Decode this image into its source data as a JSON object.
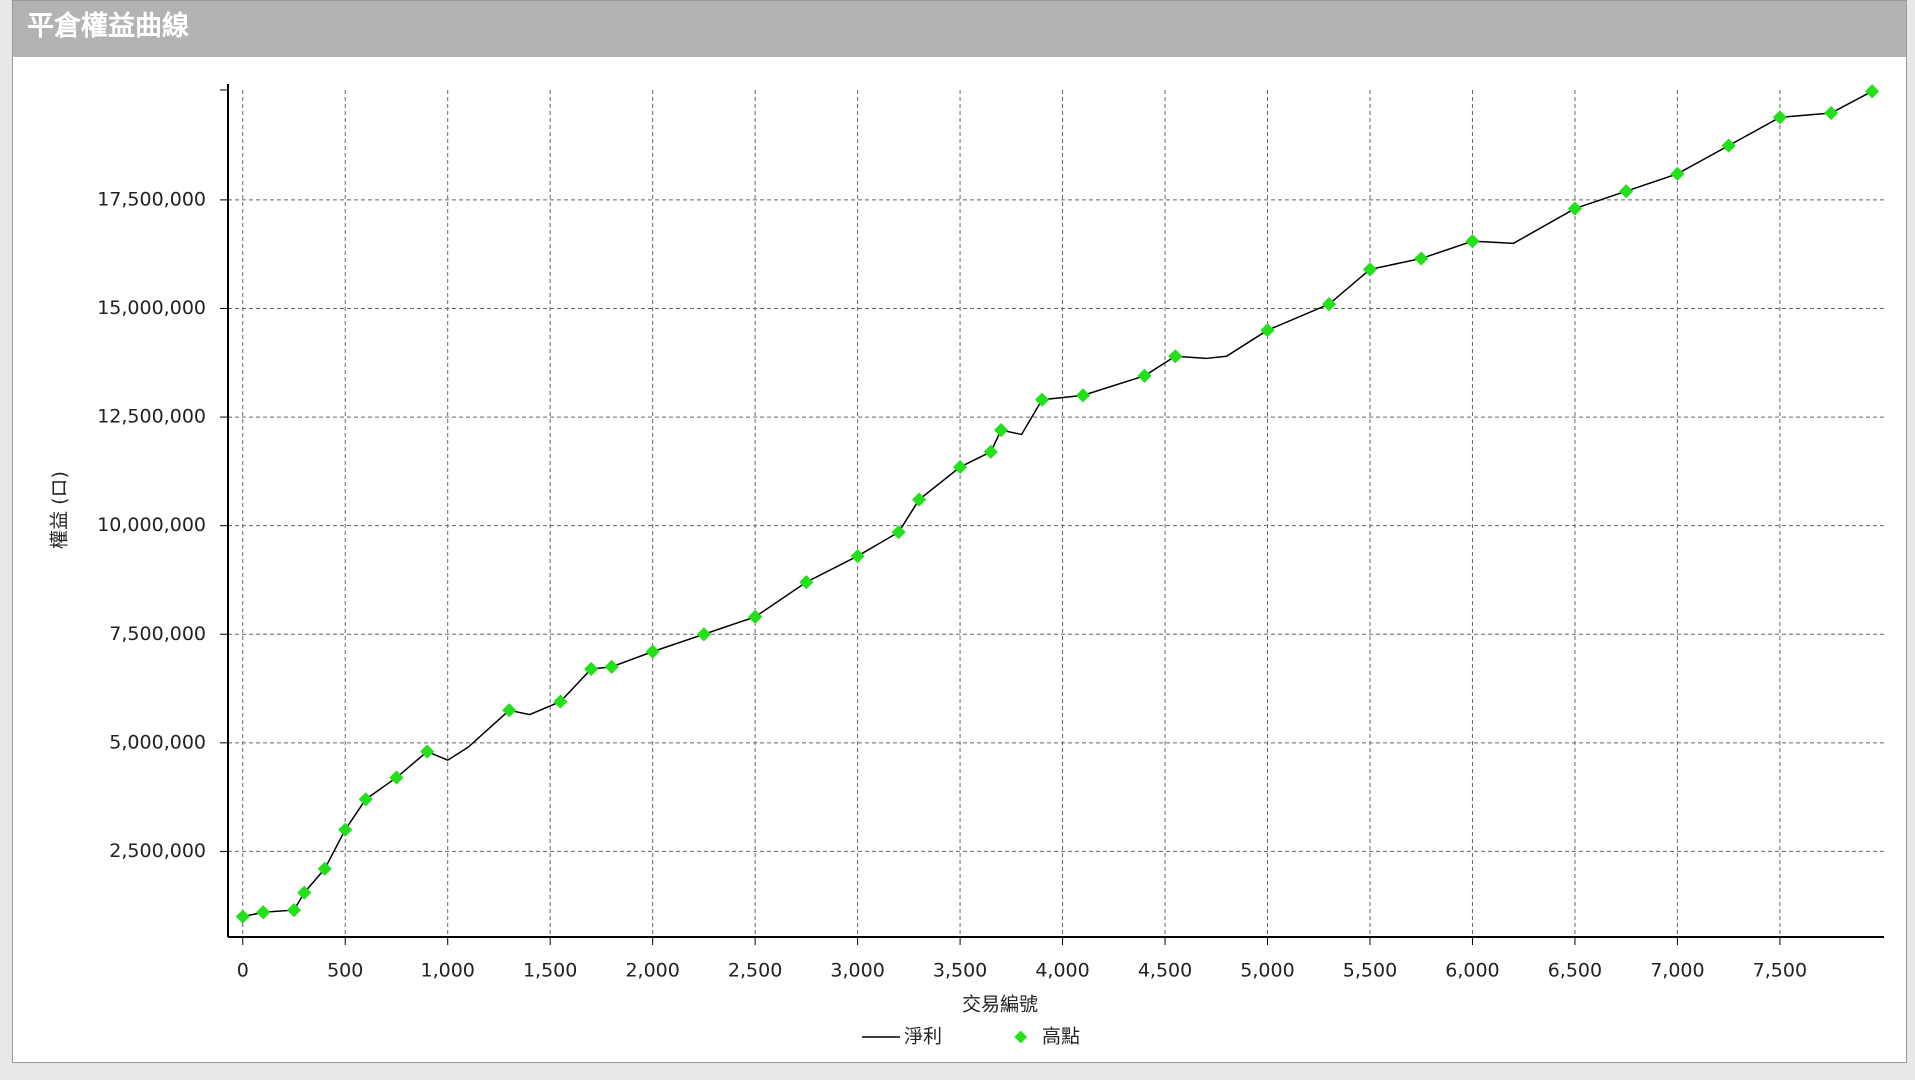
{
  "chart_data": {
    "type": "line",
    "title": "平倉權益曲線",
    "x_label": "交易編號",
    "y_label": "權益 (ロ)",
    "xlim": [
      -72,
      8008
    ],
    "ylim": [
      530000,
      20030000
    ],
    "grid": true,
    "xticks": [
      0,
      500,
      {
        "value": 1000,
        "label": "1,000"
      },
      {
        "value": 1500,
        "label": "1,500"
      },
      {
        "value": 2000,
        "label": "2,000"
      },
      {
        "value": 2500,
        "label": "2,500"
      },
      {
        "value": 3000,
        "label": "3,000"
      },
      {
        "value": 3500,
        "label": "3,500"
      },
      {
        "value": 4000,
        "label": "4,000"
      },
      {
        "value": 4500,
        "label": "4,500"
      },
      {
        "value": 5000,
        "label": "5,000"
      },
      {
        "value": 5500,
        "label": "5,500"
      },
      {
        "value": 6000,
        "label": "6,000"
      },
      {
        "value": 6500,
        "label": "6,500"
      },
      {
        "value": 7000,
        "label": "7,000"
      },
      {
        "value": 7500,
        "label": "7,500"
      }
    ],
    "yticks": [
      {
        "value": 2500000,
        "label": "2,500,000"
      },
      {
        "value": 5000000,
        "label": "5,000,000"
      },
      {
        "value": 7500000,
        "label": "7,500,000"
      },
      {
        "value": 10000000,
        "label": "10,000,000"
      },
      {
        "value": 12500000,
        "label": "12,500,000"
      },
      {
        "value": 15000000,
        "label": "15,000,000"
      },
      {
        "value": 17500000,
        "label": "17,500,000"
      }
    ],
    "series": [
      {
        "name": "淨利",
        "type": "line",
        "color": "#000000",
        "x": [
          0,
          100,
          250,
          300,
          400,
          500,
          600,
          750,
          900,
          1000,
          1100,
          1300,
          1400,
          1550,
          1700,
          1800,
          2000,
          2250,
          2500,
          2750,
          3000,
          3200,
          3300,
          3500,
          3650,
          3700,
          3800,
          3900,
          4100,
          4400,
          4550,
          4700,
          4800,
          5000,
          5300,
          5500,
          5750,
          6000,
          6200,
          6500,
          6750,
          7000,
          7250,
          7500,
          7750,
          7950
        ],
        "values": [
          1000000,
          1100000,
          1150000,
          1550000,
          2100000,
          3000000,
          3700000,
          4200000,
          4800000,
          4600000,
          4900000,
          5750000,
          5650000,
          5950000,
          6700000,
          6750000,
          7100000,
          7500000,
          7900000,
          8700000,
          9300000,
          9850000,
          10600000,
          11350000,
          11700000,
          12200000,
          12100000,
          12900000,
          13000000,
          13450000,
          13900000,
          13850000,
          13900000,
          14500000,
          15100000,
          15900000,
          16150000,
          16550000,
          16500000,
          17300000,
          17700000,
          18100000,
          18750000,
          19400000,
          19500000,
          20000000
        ]
      },
      {
        "name": "高點",
        "type": "scatter",
        "color": "#22e01a",
        "x": [
          0,
          100,
          250,
          300,
          400,
          500,
          600,
          750,
          900,
          1300,
          1550,
          1700,
          1800,
          2000,
          2250,
          2500,
          2750,
          3000,
          3200,
          3300,
          3500,
          3650,
          3700,
          3900,
          4100,
          4400,
          4550,
          5000,
          5300,
          5500,
          5750,
          6000,
          6500,
          6750,
          7000,
          7250,
          7500,
          7750,
          7950
        ],
        "values": [
          1000000,
          1100000,
          1150000,
          1550000,
          2100000,
          3000000,
          3700000,
          4200000,
          4800000,
          5750000,
          5950000,
          6700000,
          6750000,
          7100000,
          7500000,
          7900000,
          8700000,
          9300000,
          9850000,
          10600000,
          11350000,
          11700000,
          12200000,
          12900000,
          13000000,
          13450000,
          13900000,
          14500000,
          15100000,
          15900000,
          16150000,
          16550000,
          17300000,
          17700000,
          18100000,
          18750000,
          19400000,
          19500000,
          20000000
        ]
      }
    ]
  }
}
